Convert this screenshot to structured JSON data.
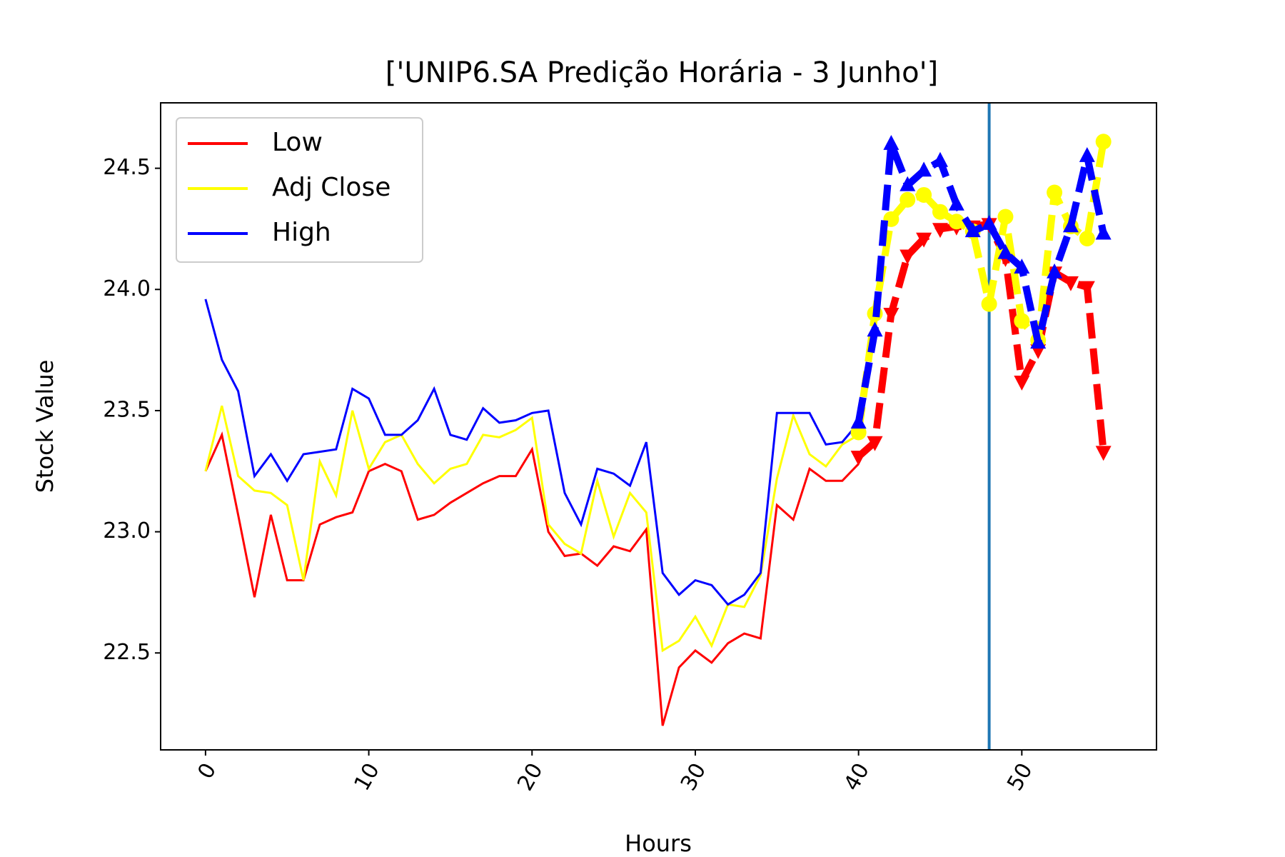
{
  "chart_data": {
    "type": "line",
    "title": "['UNIP6.SA Predição Horária - 3 Junho']",
    "xlabel": "Hours",
    "ylabel": "Stock Value",
    "xlim": [
      -2.75,
      58.25
    ],
    "ylim": [
      22.1,
      24.77
    ],
    "xticks": [
      0,
      10,
      20,
      30,
      40,
      50
    ],
    "xtick_labels": [
      "0",
      "10",
      "20",
      "30",
      "40",
      "50"
    ],
    "yticks": [
      22.5,
      23.0,
      23.5,
      24.0,
      24.5
    ],
    "ytick_labels": [
      "22.5",
      "23.0",
      "23.5",
      "24.0",
      "24.5"
    ],
    "xtick_rotation_deg": 60,
    "grid": false,
    "legend_position": "upper-left",
    "vertical_line": {
      "x": 48,
      "color": "#1f77b4"
    },
    "series": [
      {
        "name": "Low",
        "color": "#ff0000",
        "x": [
          0,
          1,
          2,
          3,
          4,
          5,
          6,
          7,
          8,
          9,
          10,
          11,
          12,
          13,
          14,
          15,
          16,
          17,
          18,
          19,
          20,
          21,
          22,
          23,
          24,
          25,
          26,
          27,
          28,
          29,
          30,
          31,
          32,
          33,
          34,
          35,
          36,
          37,
          38,
          39,
          40
        ],
        "values": [
          23.25,
          23.4,
          23.07,
          22.73,
          23.07,
          22.8,
          22.8,
          23.03,
          23.06,
          23.08,
          23.25,
          23.28,
          23.25,
          23.05,
          23.07,
          23.12,
          23.16,
          23.2,
          23.23,
          23.23,
          23.34,
          23.0,
          22.9,
          22.91,
          22.86,
          22.94,
          22.92,
          23.01,
          22.2,
          22.44,
          22.51,
          22.46,
          22.54,
          22.58,
          22.56,
          23.11,
          23.05,
          23.26,
          23.21,
          23.21,
          23.28
        ]
      },
      {
        "name": "Adj Close",
        "color": "#ffff00",
        "x": [
          0,
          1,
          2,
          3,
          4,
          5,
          6,
          7,
          8,
          9,
          10,
          11,
          12,
          13,
          14,
          15,
          16,
          17,
          18,
          19,
          20,
          21,
          22,
          23,
          24,
          25,
          26,
          27,
          28,
          29,
          30,
          31,
          32,
          33,
          34,
          35,
          36,
          37,
          38,
          39,
          40
        ],
        "values": [
          23.25,
          23.52,
          23.23,
          23.17,
          23.16,
          23.11,
          22.8,
          23.29,
          23.15,
          23.5,
          23.26,
          23.37,
          23.4,
          23.28,
          23.2,
          23.26,
          23.28,
          23.4,
          23.39,
          23.42,
          23.47,
          23.03,
          22.95,
          22.91,
          23.21,
          22.98,
          23.16,
          23.08,
          22.51,
          22.55,
          22.65,
          22.53,
          22.7,
          22.69,
          22.82,
          23.22,
          23.48,
          23.32,
          23.27,
          23.36,
          23.4
        ]
      },
      {
        "name": "High",
        "color": "#0000ff",
        "x": [
          0,
          1,
          2,
          3,
          4,
          5,
          6,
          7,
          8,
          9,
          10,
          11,
          12,
          13,
          14,
          15,
          16,
          17,
          18,
          19,
          20,
          21,
          22,
          23,
          24,
          25,
          26,
          27,
          28,
          29,
          30,
          31,
          32,
          33,
          34,
          35,
          36,
          37,
          38,
          39,
          40
        ],
        "values": [
          23.96,
          23.71,
          23.58,
          23.23,
          23.32,
          23.21,
          23.32,
          23.33,
          23.34,
          23.59,
          23.55,
          23.4,
          23.4,
          23.46,
          23.59,
          23.4,
          23.38,
          23.51,
          23.45,
          23.46,
          23.49,
          23.5,
          23.16,
          23.03,
          23.26,
          23.24,
          23.19,
          23.37,
          22.83,
          22.74,
          22.8,
          22.78,
          22.7,
          22.74,
          22.83,
          23.49,
          23.49,
          23.49,
          23.36,
          23.37,
          23.45
        ]
      }
    ],
    "prediction_series": [
      {
        "name": "Low",
        "color": "#ff0000",
        "marker": "triangle-down",
        "x": [
          40,
          41,
          42,
          43,
          44,
          45,
          46,
          47,
          48,
          49,
          50,
          51,
          52,
          53,
          54,
          55
        ],
        "values": [
          23.31,
          23.37,
          23.9,
          24.14,
          24.21,
          24.25,
          24.26,
          24.26,
          24.27,
          24.13,
          23.62,
          23.75,
          24.07,
          24.03,
          24.01,
          23.33
        ]
      },
      {
        "name": "Adj Close",
        "color": "#ffff00",
        "marker": "circle",
        "x": [
          40,
          41,
          42,
          43,
          44,
          45,
          46,
          47,
          48,
          49,
          50,
          51,
          52,
          53,
          54,
          55
        ],
        "values": [
          23.41,
          23.9,
          24.29,
          24.37,
          24.39,
          24.32,
          24.28,
          24.24,
          23.94,
          24.3,
          23.87,
          23.79,
          24.4,
          24.26,
          24.21,
          24.61
        ]
      },
      {
        "name": "High",
        "color": "#0000ff",
        "marker": "triangle-up",
        "x": [
          40,
          41,
          42,
          43,
          44,
          45,
          46,
          47,
          48,
          49,
          50,
          51,
          52,
          53,
          54,
          55
        ],
        "values": [
          23.45,
          23.83,
          24.6,
          24.43,
          24.49,
          24.53,
          24.35,
          24.24,
          24.27,
          24.15,
          24.09,
          23.78,
          24.07,
          24.26,
          24.55,
          24.23
        ]
      }
    ]
  }
}
